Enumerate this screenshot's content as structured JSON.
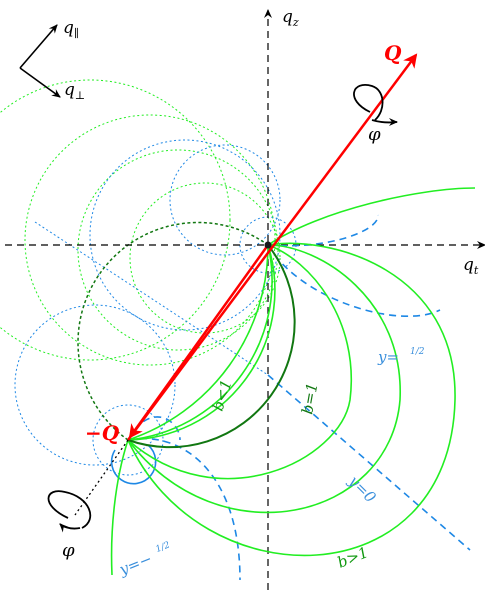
{
  "labels": {
    "q_parallel": "q",
    "q_parallel_sub": "∥",
    "q_perp": "q",
    "q_perp_sub": "⊥",
    "q_z": "q",
    "q_z_sub": "z",
    "q_t": "q",
    "q_t_sub": "t",
    "Q": "Q",
    "minus_Q": "−Q",
    "phi_top": "φ",
    "phi_bottom": "φ",
    "y_half": "y=",
    "y_half_frac": "1/2",
    "y_zero": "y=0",
    "y_neg_half": "y=−",
    "y_neg_half_frac": "1/2",
    "b_lt1": "b<1",
    "b_eq1": "b=1",
    "b_gt1": "b>1"
  },
  "colors": {
    "axis": "#000000",
    "Q_vector": "#ff0000",
    "green_curves": "#22ee22",
    "dark_green": "#117711",
    "blue_curves": "#1e88e5",
    "label_blue": "#3a8fdc",
    "label_green": "#119911"
  }
}
